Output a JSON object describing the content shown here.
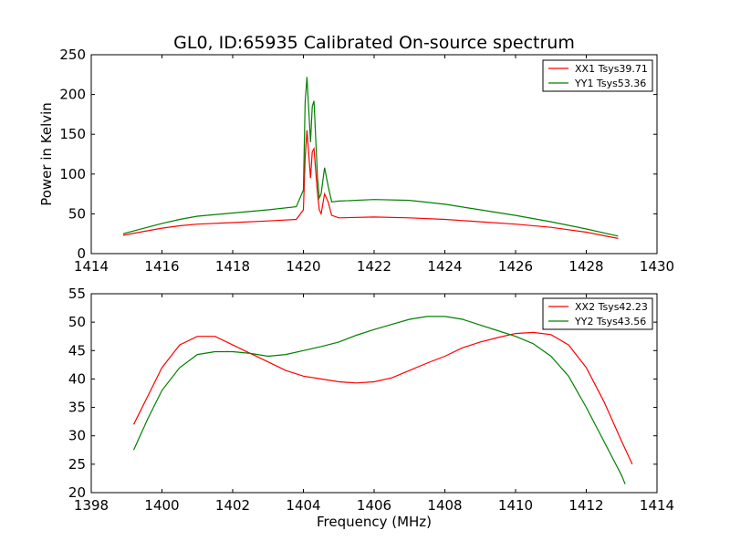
{
  "chart_data": [
    {
      "type": "line",
      "title": "GL0, ID:65935 Calibrated On-source spectrum",
      "xlabel": "",
      "ylabel": "Power in Kelvin",
      "xlim": [
        1414,
        1430
      ],
      "ylim": [
        0,
        250
      ],
      "xticks": [
        "1414",
        "1416",
        "1418",
        "1420",
        "1422",
        "1424",
        "1426",
        "1428",
        "1430"
      ],
      "yticks": [
        "0",
        "50",
        "100",
        "150",
        "200",
        "250"
      ],
      "grid": false,
      "legend_position": "top-right",
      "series": [
        {
          "name": "XX1 Tsys39.71",
          "color": "#ff0000",
          "x": [
            1414.9,
            1415.5,
            1416,
            1416.5,
            1417,
            1418,
            1419,
            1419.8,
            1420.0,
            1420.05,
            1420.1,
            1420.2,
            1420.25,
            1420.3,
            1420.4,
            1420.45,
            1420.5,
            1420.6,
            1420.7,
            1420.8,
            1421,
            1422,
            1423,
            1424,
            1425,
            1426,
            1427,
            1428,
            1428.9
          ],
          "values": [
            23,
            28,
            32,
            35,
            37,
            39,
            41,
            43,
            55,
            120,
            155,
            95,
            128,
            132,
            75,
            55,
            50,
            75,
            65,
            48,
            45,
            46,
            45,
            43,
            40,
            37,
            33,
            27,
            19
          ]
        },
        {
          "name": "YY1 Tsys53.36",
          "color": "#008000",
          "x": [
            1414.9,
            1415.5,
            1416,
            1416.5,
            1417,
            1418,
            1419,
            1419.8,
            1420.0,
            1420.05,
            1420.1,
            1420.2,
            1420.25,
            1420.3,
            1420.4,
            1420.45,
            1420.5,
            1420.6,
            1420.7,
            1420.8,
            1421,
            1422,
            1423,
            1424,
            1425,
            1426,
            1427,
            1428,
            1428.9
          ],
          "values": [
            25,
            32,
            38,
            43,
            47,
            51,
            55,
            59,
            80,
            190,
            222,
            140,
            185,
            192,
            95,
            70,
            75,
            108,
            85,
            65,
            66,
            68,
            67,
            62,
            55,
            48,
            40,
            31,
            22
          ]
        }
      ]
    },
    {
      "type": "line",
      "title": "",
      "xlabel": "Frequency (MHz)",
      "ylabel": "",
      "xlim": [
        1398,
        1414
      ],
      "ylim": [
        20,
        55
      ],
      "xticks": [
        "1398",
        "1400",
        "1402",
        "1404",
        "1406",
        "1408",
        "1410",
        "1412",
        "1414"
      ],
      "yticks": [
        "20",
        "25",
        "30",
        "35",
        "40",
        "45",
        "50",
        "55"
      ],
      "grid": false,
      "legend_position": "top-right",
      "series": [
        {
          "name": "XX2 Tsys42.23",
          "color": "#ff0000",
          "x": [
            1399.2,
            1399.6,
            1400,
            1400.5,
            1401,
            1401.5,
            1402,
            1402.5,
            1403,
            1403.5,
            1404,
            1404.5,
            1405,
            1405.5,
            1406,
            1406.5,
            1407,
            1407.5,
            1408,
            1408.5,
            1409,
            1409.5,
            1410,
            1410.5,
            1411,
            1411.5,
            1412,
            1412.5,
            1413,
            1413.3
          ],
          "values": [
            32,
            37,
            42,
            46,
            47.5,
            47.5,
            46,
            44.5,
            43,
            41.5,
            40.5,
            40,
            39.5,
            39.3,
            39.5,
            40.2,
            41.5,
            42.8,
            44,
            45.5,
            46.5,
            47.3,
            48,
            48.2,
            47.8,
            46,
            42,
            36,
            29,
            25
          ]
        },
        {
          "name": "YY2 Tsys43.56",
          "color": "#008000",
          "x": [
            1399.2,
            1399.6,
            1400,
            1400.5,
            1401,
            1401.5,
            1402,
            1402.5,
            1403,
            1403.5,
            1404,
            1404.5,
            1405,
            1405.5,
            1406,
            1406.5,
            1407,
            1407.5,
            1408,
            1408.5,
            1409,
            1409.5,
            1410,
            1410.5,
            1411,
            1411.5,
            1412,
            1412.5,
            1413,
            1413.1
          ],
          "values": [
            27.5,
            33,
            38,
            42,
            44.3,
            44.8,
            44.8,
            44.5,
            44,
            44.3,
            45,
            45.7,
            46.5,
            47.7,
            48.7,
            49.6,
            50.5,
            51,
            51,
            50.5,
            49.5,
            48.5,
            47.5,
            46.2,
            44,
            40.5,
            35,
            29,
            23,
            21.5
          ]
        }
      ]
    }
  ]
}
